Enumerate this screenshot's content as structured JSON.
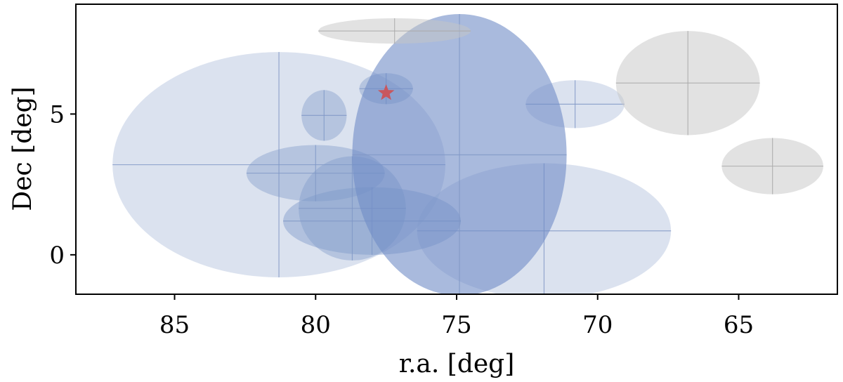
{
  "chart_data": {
    "type": "scatter",
    "title": "",
    "xlabel": "r.a. [deg]",
    "ylabel": "Dec [deg]",
    "xlim": [
      88.5,
      61.5
    ],
    "ylim": [
      -1.4,
      8.9
    ],
    "xticks": [
      85,
      80,
      75,
      70,
      65
    ],
    "yticks": [
      0,
      5
    ],
    "grid": false,
    "regions": [
      {
        "ra": 81.3,
        "dec": 3.2,
        "ra_half_width": 5.9,
        "dec_half_height": 4.0,
        "color": "#b7c6e0",
        "opacity": 0.5
      },
      {
        "ra": 71.9,
        "dec": 0.85,
        "ra_half_width": 4.5,
        "dec_half_height": 2.4,
        "color": "#b7c6e0",
        "opacity": 0.5
      },
      {
        "ra": 78.0,
        "dec": 1.2,
        "ra_half_width": 3.15,
        "dec_half_height": 1.2,
        "color": "#7e98c9",
        "opacity": 0.45
      },
      {
        "ra": 78.7,
        "dec": 1.65,
        "ra_half_width": 1.9,
        "dec_half_height": 1.85,
        "color": "#7e98c9",
        "opacity": 0.4
      },
      {
        "ra": 80.0,
        "dec": 2.9,
        "ra_half_width": 2.45,
        "dec_half_height": 1.0,
        "color": "#7e98c9",
        "opacity": 0.4
      },
      {
        "ra": 79.7,
        "dec": 4.95,
        "ra_half_width": 0.8,
        "dec_half_height": 0.9,
        "color": "#7e98c9",
        "opacity": 0.4
      },
      {
        "ra": 77.5,
        "dec": 5.9,
        "ra_half_width": 0.95,
        "dec_half_height": 0.55,
        "color": "#7e98c9",
        "opacity": 0.4
      },
      {
        "ra": 70.8,
        "dec": 5.35,
        "ra_half_width": 1.75,
        "dec_half_height": 0.85,
        "color": "#b7c6e0",
        "opacity": 0.5
      },
      {
        "ra": 74.9,
        "dec": 3.55,
        "ra_half_width": 3.8,
        "dec_half_height": 5.0,
        "color": "#6f8cc6",
        "opacity": 0.6
      },
      {
        "ra": 77.2,
        "dec": 7.95,
        "ra_half_width": 2.7,
        "dec_half_height": 0.45,
        "color": "#c6c6c6",
        "opacity": 0.5
      },
      {
        "ra": 66.8,
        "dec": 6.1,
        "ra_half_width": 2.55,
        "dec_half_height": 1.85,
        "color": "#c6c6c6",
        "opacity": 0.5
      },
      {
        "ra": 63.8,
        "dec": 3.15,
        "ra_half_width": 1.8,
        "dec_half_height": 1.0,
        "color": "#c6c6c6",
        "opacity": 0.5
      }
    ],
    "marker": {
      "ra": 77.5,
      "dec": 5.75,
      "shape": "star",
      "color": "#c8575e"
    }
  }
}
